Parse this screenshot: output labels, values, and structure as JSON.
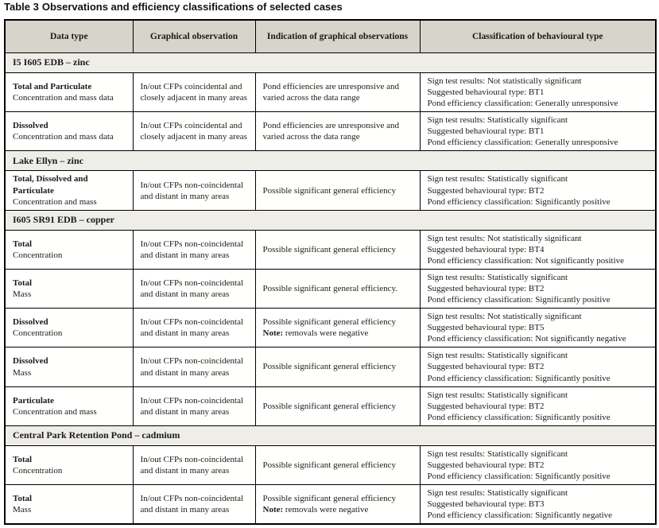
{
  "page": {
    "title_label": "Table 3",
    "title_text": "Observations and efficiency classifications of selected cases"
  },
  "colors": {
    "header_bg": "#d7d4cb",
    "section_bg": "#efede8",
    "border": "#000000",
    "text": "#1b1b1b"
  },
  "table": {
    "note_label": "Note:",
    "columns": [
      {
        "label": "Data type"
      },
      {
        "label": "Graphical observation"
      },
      {
        "label": "Indication of graphical observations"
      },
      {
        "label": "Classification of behavioural type"
      }
    ],
    "sections": [
      {
        "header": "I5 I605 EDB – zinc",
        "rows": [
          {
            "data_type": "Total and Particulate",
            "data_type_detail": "Concentration and mass data",
            "graphical_observation": "In/out CFPs coincidental and closely adjacent in many areas",
            "indication": "Pond efficiencies are unresponsive and varied across the data range",
            "note": null,
            "classification": [
              "Sign test results: Not statistically significant",
              "Suggested behavioural type: BT1",
              "Pond efficiency classification: Generally unresponsive"
            ]
          },
          {
            "data_type": "Dissolved",
            "data_type_detail": "Concentration and mass data",
            "graphical_observation": "In/out CFPs coincidental and closely adjacent in many areas",
            "indication": "Pond efficiencies are unresponsive and varied across the data range",
            "note": null,
            "classification": [
              "Sign test results: Statistically significant",
              "Suggested behavioural type: BT1",
              "Pond efficiency classification: Generally unresponsive"
            ]
          }
        ]
      },
      {
        "header": "Lake Ellyn – zinc",
        "rows": [
          {
            "data_type": "Total, Dissolved and Particulate",
            "data_type_detail": "Concentration and mass",
            "graphical_observation": "In/out CFPs non-coincidental and distant in many areas",
            "indication": "Possible significant general efficiency",
            "note": null,
            "classification": [
              "Sign test results: Statistically significant",
              "Suggested behavioural type: BT2",
              "Pond efficiency classification: Significantly positive"
            ]
          }
        ]
      },
      {
        "header": "I605 SR91 EDB – copper",
        "rows": [
          {
            "data_type": "Total",
            "data_type_detail": "Concentration",
            "graphical_observation": "In/out CFPs non-coincidental and distant in many areas",
            "indication": "Possible significant general efficiency",
            "note": null,
            "classification": [
              "Sign test results: Not statistically significant",
              "Suggested behavioural type: BT4",
              "Pond efficiency classification: Not significantly positive"
            ]
          },
          {
            "data_type": "Total",
            "data_type_detail": "Mass",
            "graphical_observation": "In/out CFPs non-coincidental and distant in many areas",
            "indication": "Possible significant general efficiency.",
            "note": null,
            "classification": [
              "Sign test results: Statistically significant",
              "Suggested behavioural type: BT2",
              "Pond efficiency classification: Significantly positive"
            ]
          },
          {
            "data_type": "Dissolved",
            "data_type_detail": "Concentration",
            "graphical_observation": "In/out CFPs non-coincidental and distant in many areas",
            "indication": "Possible significant general efficiency",
            "note": "removals were negative",
            "classification": [
              "Sign test results: Not statistically significant",
              "Suggested behavioural type: BT5",
              "Pond efficiency classification: Not significantly negative"
            ]
          },
          {
            "data_type": "Dissolved",
            "data_type_detail": "Mass",
            "graphical_observation": "In/out CFPs non-coincidental and distant in many areas",
            "indication": "Possible significant general efficiency",
            "note": null,
            "classification": [
              "Sign test results: Statistically significant",
              "Suggested behavioural type: BT2",
              "Pond efficiency classification: Significantly positive"
            ]
          },
          {
            "data_type": "Particulate",
            "data_type_detail": "Concentration and mass",
            "graphical_observation": "In/out CFPs non-coincidental and distant in many areas",
            "indication": "Possible significant general efficiency",
            "note": null,
            "classification": [
              "Sign test results: Statistically significant",
              "Suggested behavioural type: BT2",
              "Pond efficiency classification: Significantly positive"
            ]
          }
        ]
      },
      {
        "header": "Central Park Retention Pond – cadmium",
        "rows": [
          {
            "data_type": "Total",
            "data_type_detail": "Concentration",
            "graphical_observation": "In/out CFPs non-coincidental and distant in many areas",
            "indication": "Possible significant general efficiency",
            "note": null,
            "classification": [
              "Sign test results: Statistically significant",
              "Suggested behavioural type: BT2",
              "Pond efficiency classification: Significantly positive"
            ]
          },
          {
            "data_type": "Total",
            "data_type_detail": "Mass",
            "graphical_observation": "In/out CFPs non-coincidental and distant in many areas",
            "indication": "Possible significant general efficiency",
            "note": "removals were negative",
            "classification": [
              "Sign test results: Statistically significant",
              "Suggested behavioural type: BT3",
              "Pond efficiency classification: Significantly negative"
            ]
          }
        ]
      }
    ]
  }
}
